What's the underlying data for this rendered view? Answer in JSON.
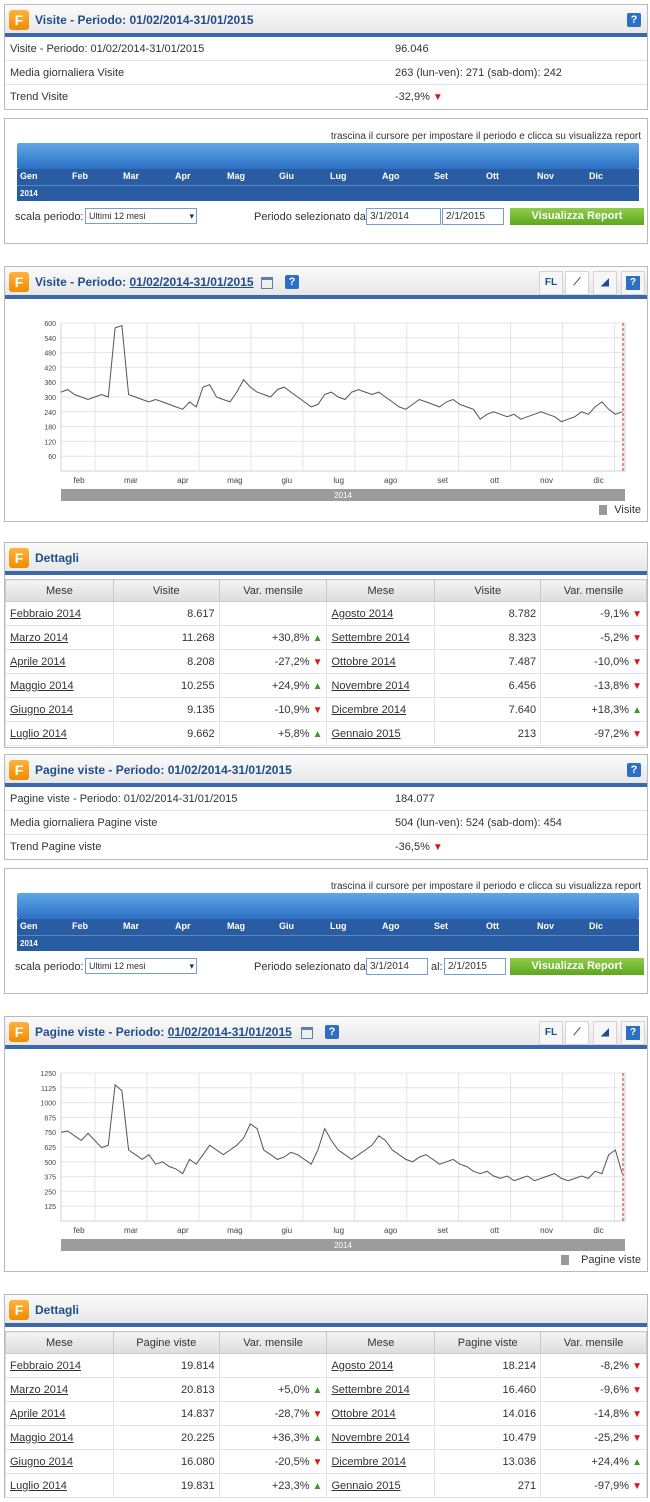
{
  "visite_summary": {
    "title": "Visite - Periodo: 01/02/2014-31/01/2015",
    "rows": [
      {
        "label": "Visite - Periodo: 01/02/2014-31/01/2015",
        "value": "96.046"
      },
      {
        "label": "Media giornaliera Visite",
        "value": "263  (lun-ven): 271   (sab-dom): 242"
      },
      {
        "label": "Trend Visite",
        "value": "-32,9%"
      }
    ]
  },
  "slider": {
    "hint": "trascina il cursore per impostare il periodo e clicca su visualizza report",
    "months": [
      "Gen",
      "Feb",
      "Mar",
      "Apr",
      "Mag",
      "Giu",
      "Lug",
      "Ago",
      "Set",
      "Ott",
      "Nov",
      "Dic"
    ],
    "year": "2014",
    "scale_label": "scala periodo:",
    "scale_value": "Ultimi 12 mesi",
    "period_label": "Periodo selezionato dal:",
    "from": "3/1/2014",
    "to_label": "al:",
    "to": "2/1/2015",
    "button": "Visualizza Report"
  },
  "chart_toolbar": {
    "fl": "FL",
    "help": "?"
  },
  "chart_visite": {
    "title_prefix": "Visite - Periodo: ",
    "title_date": "01/02/2014-31/01/2015",
    "legend": "Visite"
  },
  "chart_pagine": {
    "title_prefix": "Pagine viste - Periodo: ",
    "title_date": "01/02/2014-31/01/2015",
    "legend": "Pagine viste"
  },
  "chart_data": [
    {
      "type": "line",
      "yticks": [
        "600",
        "540",
        "480",
        "420",
        "360",
        "300",
        "240",
        "180",
        "120",
        "60"
      ],
      "xticks": [
        "feb",
        "mar",
        "apr",
        "mag",
        "giu",
        "lug",
        "ago",
        "set",
        "ott",
        "nov",
        "dic"
      ],
      "xlabel": "2014",
      "ylim": [
        0,
        600
      ],
      "series": [
        {
          "name": "Visite",
          "values": [
            320,
            330,
            310,
            300,
            290,
            300,
            310,
            300,
            580,
            590,
            310,
            300,
            290,
            280,
            290,
            280,
            270,
            260,
            250,
            280,
            260,
            340,
            350,
            300,
            290,
            280,
            320,
            370,
            340,
            320,
            310,
            300,
            330,
            340,
            320,
            300,
            280,
            260,
            270,
            310,
            320,
            300,
            290,
            320,
            330,
            320,
            310,
            320,
            300,
            280,
            260,
            250,
            270,
            290,
            280,
            270,
            260,
            280,
            290,
            270,
            260,
            250,
            210,
            230,
            240,
            230,
            220,
            230,
            210,
            220,
            230,
            240,
            230,
            220,
            200,
            210,
            220,
            240,
            230,
            260,
            280,
            250,
            230,
            240
          ]
        }
      ]
    },
    {
      "type": "line",
      "yticks": [
        "1250",
        "1125",
        "1000",
        "875",
        "750",
        "625",
        "500",
        "375",
        "250",
        "125"
      ],
      "xticks": [
        "feb",
        "mar",
        "apr",
        "mag",
        "giu",
        "lug",
        "ago",
        "set",
        "ott",
        "nov",
        "dic"
      ],
      "xlabel": "2014",
      "ylim": [
        0,
        1250
      ],
      "series": [
        {
          "name": "Pagine viste",
          "values": [
            750,
            760,
            720,
            680,
            740,
            680,
            620,
            640,
            1150,
            1100,
            600,
            560,
            520,
            560,
            480,
            500,
            460,
            440,
            400,
            520,
            480,
            560,
            640,
            600,
            560,
            600,
            640,
            700,
            820,
            780,
            600,
            560,
            520,
            540,
            580,
            560,
            520,
            480,
            600,
            780,
            680,
            600,
            560,
            520,
            560,
            600,
            640,
            720,
            680,
            600,
            560,
            520,
            500,
            540,
            560,
            520,
            480,
            500,
            520,
            480,
            460,
            420,
            400,
            420,
            380,
            360,
            380,
            340,
            360,
            380,
            340,
            360,
            380,
            400,
            360,
            340,
            360,
            380,
            360,
            420,
            400,
            560,
            600,
            400
          ]
        }
      ]
    }
  ],
  "dettagli_visite": {
    "title": "Dettagli",
    "headers": [
      "Mese",
      "Visite",
      "Var. mensile",
      "Mese",
      "Visite",
      "Var. mensile"
    ],
    "rows": [
      {
        "m1": "Febbraio 2014",
        "v1": "8.617",
        "c1": "",
        "t1": "",
        "m2": "Agosto 2014",
        "v2": "8.782",
        "c2": "-9,1%",
        "t2": "down"
      },
      {
        "m1": "Marzo 2014",
        "v1": "11.268",
        "c1": "+30,8%",
        "t1": "up",
        "m2": "Settembre 2014",
        "v2": "8.323",
        "c2": "-5,2%",
        "t2": "down"
      },
      {
        "m1": "Aprile 2014",
        "v1": "8.208",
        "c1": "-27,2%",
        "t1": "down",
        "m2": "Ottobre 2014",
        "v2": "7.487",
        "c2": "-10,0%",
        "t2": "down"
      },
      {
        "m1": "Maggio 2014",
        "v1": "10.255",
        "c1": "+24,9%",
        "t1": "up",
        "m2": "Novembre 2014",
        "v2": "6.456",
        "c2": "-13,8%",
        "t2": "down"
      },
      {
        "m1": "Giugno 2014",
        "v1": "9.135",
        "c1": "-10,9%",
        "t1": "down",
        "m2": "Dicembre 2014",
        "v2": "7.640",
        "c2": "+18,3%",
        "t2": "up"
      },
      {
        "m1": "Luglio 2014",
        "v1": "9.662",
        "c1": "+5,8%",
        "t1": "up",
        "m2": "Gennaio 2015",
        "v2": "213",
        "c2": "-97,2%",
        "t2": "down"
      }
    ]
  },
  "pagine_summary": {
    "title": "Pagine viste - Periodo: 01/02/2014-31/01/2015",
    "rows": [
      {
        "label": "Pagine viste - Periodo: 01/02/2014-31/01/2015",
        "value": "184.077"
      },
      {
        "label": "Media giornaliera Pagine viste",
        "value": "504  (lun-ven): 524   (sab-dom): 454"
      },
      {
        "label": "Trend Pagine viste",
        "value": "-36,5%"
      }
    ]
  },
  "dettagli_pagine": {
    "title": "Dettagli",
    "headers": [
      "Mese",
      "Pagine viste",
      "Var. mensile",
      "Mese",
      "Pagine viste",
      "Var. mensile"
    ],
    "rows": [
      {
        "m1": "Febbraio 2014",
        "v1": "19.814",
        "c1": "",
        "t1": "",
        "m2": "Agosto 2014",
        "v2": "18.214",
        "c2": "-8,2%",
        "t2": "down"
      },
      {
        "m1": "Marzo 2014",
        "v1": "20.813",
        "c1": "+5,0%",
        "t1": "up",
        "m2": "Settembre 2014",
        "v2": "16.460",
        "c2": "-9,6%",
        "t2": "down"
      },
      {
        "m1": "Aprile 2014",
        "v1": "14.837",
        "c1": "-28,7%",
        "t1": "down",
        "m2": "Ottobre 2014",
        "v2": "14.016",
        "c2": "-14,8%",
        "t2": "down"
      },
      {
        "m1": "Maggio 2014",
        "v1": "20.225",
        "c1": "+36,3%",
        "t1": "up",
        "m2": "Novembre 2014",
        "v2": "10.479",
        "c2": "-25,2%",
        "t2": "down"
      },
      {
        "m1": "Giugno 2014",
        "v1": "16.080",
        "c1": "-20,5%",
        "t1": "down",
        "m2": "Dicembre 2014",
        "v2": "13.036",
        "c2": "+24,4%",
        "t2": "up"
      },
      {
        "m1": "Luglio 2014",
        "v1": "19.831",
        "c1": "+23,3%",
        "t1": "up",
        "m2": "Gennaio 2015",
        "v2": "271",
        "c2": "-97,9%",
        "t2": "down"
      }
    ]
  },
  "colors": {
    "accent": "#3a68a8",
    "down": "#d61a1a",
    "up": "#3d9b24",
    "button": "#6bb22c"
  }
}
